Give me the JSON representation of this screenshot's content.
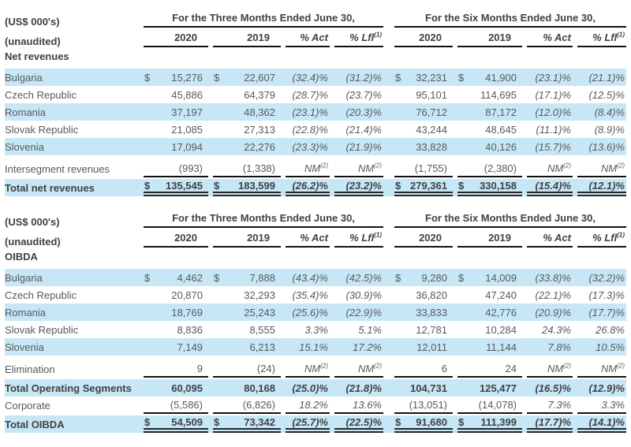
{
  "colors": {
    "row_highlight": "#c7e7f6",
    "text_regular": "#58595b",
    "text_bold": "#414042",
    "rule_line": "#111111"
  },
  "tables": [
    {
      "unit_label": "(US$ 000's)",
      "unaudited_label": "(unaudited)",
      "section_label": "Net revenues",
      "groups": [
        {
          "title": "For the Three Months Ended June 30,"
        },
        {
          "title": "For the Six Months Ended June 30,"
        }
      ],
      "col_headers": [
        {
          "label": "2020"
        },
        {
          "label": "2019"
        },
        {
          "label": "% Act",
          "italic": true
        },
        {
          "label": "% Lfl",
          "italic": true,
          "sup": "(1)"
        },
        {
          "label": "2020"
        },
        {
          "label": "2019"
        },
        {
          "label": "% Act",
          "italic": true
        },
        {
          "label": "% Lfl",
          "italic": true,
          "sup": "(1)"
        }
      ],
      "rows": [
        {
          "label": "Bulgaria",
          "hl": true,
          "cells": [
            {
              "d": "$",
              "v": "15,276"
            },
            {
              "d": "$",
              "v": "22,607"
            },
            {
              "v": "(32.4)%"
            },
            {
              "v": "(31.2)%"
            },
            {
              "d": "$",
              "v": "32,231"
            },
            {
              "d": "$",
              "v": "41,900"
            },
            {
              "v": "(23.1)%"
            },
            {
              "v": "(21.1)%"
            }
          ]
        },
        {
          "label": "Czech Republic",
          "cells": [
            {
              "v": "45,886"
            },
            {
              "v": "64,379"
            },
            {
              "v": "(28.7)%"
            },
            {
              "v": "(23.7)%"
            },
            {
              "v": "95,101"
            },
            {
              "v": "114,695"
            },
            {
              "v": "(17.1)%"
            },
            {
              "v": "(12.5)%"
            }
          ]
        },
        {
          "label": "Romania",
          "hl": true,
          "cells": [
            {
              "v": "37,197"
            },
            {
              "v": "48,362"
            },
            {
              "v": "(23.1)%"
            },
            {
              "v": "(20.3)%"
            },
            {
              "v": "76,712"
            },
            {
              "v": "87,172"
            },
            {
              "v": "(12.0)%"
            },
            {
              "v": "(8.4)%"
            }
          ]
        },
        {
          "label": "Slovak Republic",
          "cells": [
            {
              "v": "21,085"
            },
            {
              "v": "27,313"
            },
            {
              "v": "(22.8)%"
            },
            {
              "v": "(21.4)%"
            },
            {
              "v": "43,244"
            },
            {
              "v": "48,645"
            },
            {
              "v": "(11.1)%"
            },
            {
              "v": "(8.9)%"
            }
          ]
        },
        {
          "label": "Slovenia",
          "hl": true,
          "cells": [
            {
              "v": "17,094"
            },
            {
              "v": "22,276"
            },
            {
              "v": "(23.3)%"
            },
            {
              "v": "(21.9)%"
            },
            {
              "v": "33,828"
            },
            {
              "v": "40,126"
            },
            {
              "v": "(15.7)%"
            },
            {
              "v": "(13.6)%"
            }
          ]
        },
        {
          "label": "Intersegment revenues",
          "gap_before": true,
          "rule": "single",
          "cells": [
            {
              "v": "(993)"
            },
            {
              "v": "(1,338)"
            },
            {
              "v": "NM",
              "sup": "(2)"
            },
            {
              "v": "NM",
              "sup": "(2)"
            },
            {
              "v": "(1,755)"
            },
            {
              "v": "(2,380)"
            },
            {
              "v": "NM",
              "sup": "(2)"
            },
            {
              "v": "NM",
              "sup": "(2)"
            }
          ]
        },
        {
          "label": "Total net revenues",
          "hl": true,
          "bold": true,
          "rule": "double",
          "cells": [
            {
              "d": "$",
              "v": "135,545"
            },
            {
              "d": "$",
              "v": "183,599"
            },
            {
              "v": "(26.2)%"
            },
            {
              "v": "(23.2)%"
            },
            {
              "d": "$",
              "v": "279,361"
            },
            {
              "d": "$",
              "v": "330,158"
            },
            {
              "v": "(15.4)%"
            },
            {
              "v": "(12.1)%"
            }
          ]
        }
      ]
    },
    {
      "unit_label": "(US$ 000's)",
      "unaudited_label": "(unaudited)",
      "section_label": "OIBDA",
      "groups": [
        {
          "title": "For the Three Months Ended June 30,"
        },
        {
          "title": "For the Six Months Ended June 30,"
        }
      ],
      "col_headers": [
        {
          "label": "2020"
        },
        {
          "label": "2019"
        },
        {
          "label": "% Act",
          "italic": true
        },
        {
          "label": "% Lfl",
          "italic": true,
          "sup": "(1)"
        },
        {
          "label": "2020"
        },
        {
          "label": "2019"
        },
        {
          "label": "% Act",
          "italic": true
        },
        {
          "label": "% Lfl",
          "italic": true,
          "sup": "(1)"
        }
      ],
      "rows": [
        {
          "label": "Bulgaria",
          "hl": true,
          "cells": [
            {
              "d": "$",
              "v": "4,462"
            },
            {
              "d": "$",
              "v": "7,888"
            },
            {
              "v": "(43.4)%"
            },
            {
              "v": "(42.5)%"
            },
            {
              "d": "$",
              "v": "9,280"
            },
            {
              "d": "$",
              "v": "14,009"
            },
            {
              "v": "(33.8)%"
            },
            {
              "v": "(32.2)%"
            }
          ]
        },
        {
          "label": "Czech Republic",
          "cells": [
            {
              "v": "20,870"
            },
            {
              "v": "32,293"
            },
            {
              "v": "(35.4)%"
            },
            {
              "v": "(30.9)%"
            },
            {
              "v": "36,820"
            },
            {
              "v": "47,240"
            },
            {
              "v": "(22.1)%"
            },
            {
              "v": "(17.3)%"
            }
          ]
        },
        {
          "label": "Romania",
          "hl": true,
          "cells": [
            {
              "v": "18,769"
            },
            {
              "v": "25,243"
            },
            {
              "v": "(25.6)%"
            },
            {
              "v": "(22.9)%"
            },
            {
              "v": "33,833"
            },
            {
              "v": "42,776"
            },
            {
              "v": "(20.9)%"
            },
            {
              "v": "(17.7)%"
            }
          ]
        },
        {
          "label": "Slovak Republic",
          "cells": [
            {
              "v": "8,836"
            },
            {
              "v": "8,555"
            },
            {
              "v": "3.3%"
            },
            {
              "v": "5.1%"
            },
            {
              "v": "12,781"
            },
            {
              "v": "10,284"
            },
            {
              "v": "24.3%"
            },
            {
              "v": "26.8%"
            }
          ]
        },
        {
          "label": "Slovenia",
          "hl": true,
          "cells": [
            {
              "v": "7,149"
            },
            {
              "v": "6,213"
            },
            {
              "v": "15.1%"
            },
            {
              "v": "17.2%"
            },
            {
              "v": "12,011"
            },
            {
              "v": "11,144"
            },
            {
              "v": "7.8%"
            },
            {
              "v": "10.5%"
            }
          ]
        },
        {
          "label": "Elimination",
          "gap_before": true,
          "rule": "single",
          "cells": [
            {
              "v": "9"
            },
            {
              "v": "(24)"
            },
            {
              "v": "NM",
              "sup": "(2)"
            },
            {
              "v": "NM",
              "sup": "(2)"
            },
            {
              "v": "6"
            },
            {
              "v": "24"
            },
            {
              "v": "NM",
              "sup": "(2)"
            },
            {
              "v": "NM",
              "sup": "(2)"
            }
          ]
        },
        {
          "label": "Total Operating Segments",
          "hl": true,
          "bold": true,
          "cells": [
            {
              "v": "60,095"
            },
            {
              "v": "80,168"
            },
            {
              "v": "(25.0)%"
            },
            {
              "v": "(21.8)%"
            },
            {
              "v": "104,731"
            },
            {
              "v": "125,477"
            },
            {
              "v": "(16.5)%"
            },
            {
              "v": "(12.9)%"
            }
          ]
        },
        {
          "label": "Corporate",
          "rule": "single",
          "cells": [
            {
              "v": "(5,586)"
            },
            {
              "v": "(6,826)"
            },
            {
              "v": "18.2%"
            },
            {
              "v": "13.6%"
            },
            {
              "v": "(13,051)"
            },
            {
              "v": "(14,078)"
            },
            {
              "v": "7.3%"
            },
            {
              "v": "3.3%"
            }
          ]
        },
        {
          "label": "Total OIBDA",
          "hl": true,
          "bold": true,
          "rule": "double",
          "cells": [
            {
              "d": "$",
              "v": "54,509"
            },
            {
              "d": "$",
              "v": "73,342"
            },
            {
              "v": "(25.7)%"
            },
            {
              "v": "(22.5)%"
            },
            {
              "d": "$",
              "v": "91,680"
            },
            {
              "d": "$",
              "v": "111,399"
            },
            {
              "v": "(17.7)%"
            },
            {
              "v": "(14.1)%"
            }
          ]
        }
      ]
    }
  ]
}
